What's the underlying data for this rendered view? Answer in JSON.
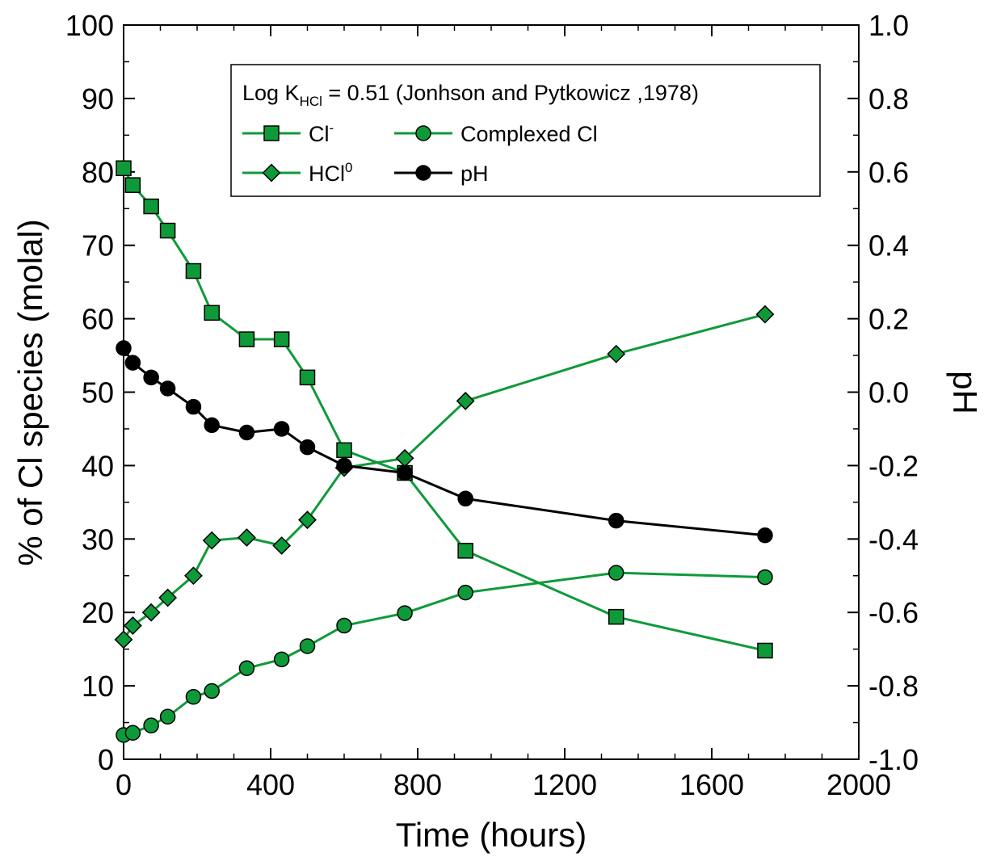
{
  "chart_data": {
    "type": "line",
    "xlabel": "Time (hours)",
    "ylabel": "% of Cl species (molal)",
    "y2label": "pH",
    "xlim": [
      0,
      2000
    ],
    "ylim": [
      0,
      100
    ],
    "y2lim": [
      -1.0,
      1.0
    ],
    "xticks": [
      "0",
      "400",
      "800",
      "1200",
      "1600",
      "2000"
    ],
    "yticks": [
      "0",
      "10",
      "20",
      "30",
      "40",
      "50",
      "60",
      "70",
      "80",
      "90",
      "100"
    ],
    "y2ticks": [
      "-1.0",
      "-0.8",
      "-0.6",
      "-0.4",
      "-0.2",
      "0.0",
      "0.2",
      "0.4",
      "0.6",
      "0.8",
      "1.0"
    ],
    "grid": false,
    "legend_position": "top-center",
    "legend_title": {
      "prefix": "Log K",
      "sub": "HCl",
      "suffix": " = 0.51 (Jonhson and Pytkowicz ,1978)"
    },
    "series": [
      {
        "key": "cl",
        "name": "Cl",
        "name_sup": "-",
        "marker": "square",
        "color": "#0f9a3a",
        "axis": "left",
        "x": [
          0,
          25,
          75,
          120,
          190,
          240,
          335,
          430,
          500,
          600,
          765,
          930,
          1340,
          1745
        ],
        "y": [
          80.5,
          78.2,
          75.3,
          72.0,
          66.5,
          60.8,
          57.2,
          57.2,
          52.0,
          42.1,
          39.0,
          28.4,
          19.4,
          14.8
        ]
      },
      {
        "key": "complexed",
        "name": "Complexed Cl",
        "marker": "circle",
        "color": "#0f9a3a",
        "axis": "left",
        "x": [
          0,
          25,
          75,
          120,
          190,
          240,
          335,
          430,
          500,
          600,
          765,
          930,
          1340,
          1745
        ],
        "y": [
          3.3,
          3.6,
          4.6,
          5.8,
          8.5,
          9.3,
          12.4,
          13.6,
          15.4,
          18.2,
          19.9,
          22.7,
          25.4,
          24.8
        ]
      },
      {
        "key": "hcl",
        "name": "HCl",
        "name_sup": "0",
        "marker": "diamond",
        "color": "#0f9a3a",
        "axis": "left",
        "x": [
          0,
          25,
          75,
          120,
          190,
          240,
          335,
          430,
          500,
          600,
          765,
          930,
          1340,
          1745
        ],
        "y": [
          16.3,
          18.2,
          20.0,
          22.0,
          25.0,
          29.8,
          30.2,
          29.1,
          32.6,
          39.7,
          41.0,
          48.8,
          55.2,
          60.6
        ]
      },
      {
        "key": "ph",
        "name": "pH",
        "marker": "circle",
        "color": "#000000",
        "axis": "right",
        "x": [
          0,
          25,
          75,
          120,
          190,
          240,
          335,
          430,
          500,
          600,
          765,
          930,
          1340,
          1745
        ],
        "y": [
          0.12,
          0.08,
          0.04,
          0.01,
          -0.04,
          -0.09,
          -0.11,
          -0.1,
          -0.15,
          -0.2,
          -0.22,
          -0.29,
          -0.35,
          -0.39
        ]
      }
    ]
  }
}
